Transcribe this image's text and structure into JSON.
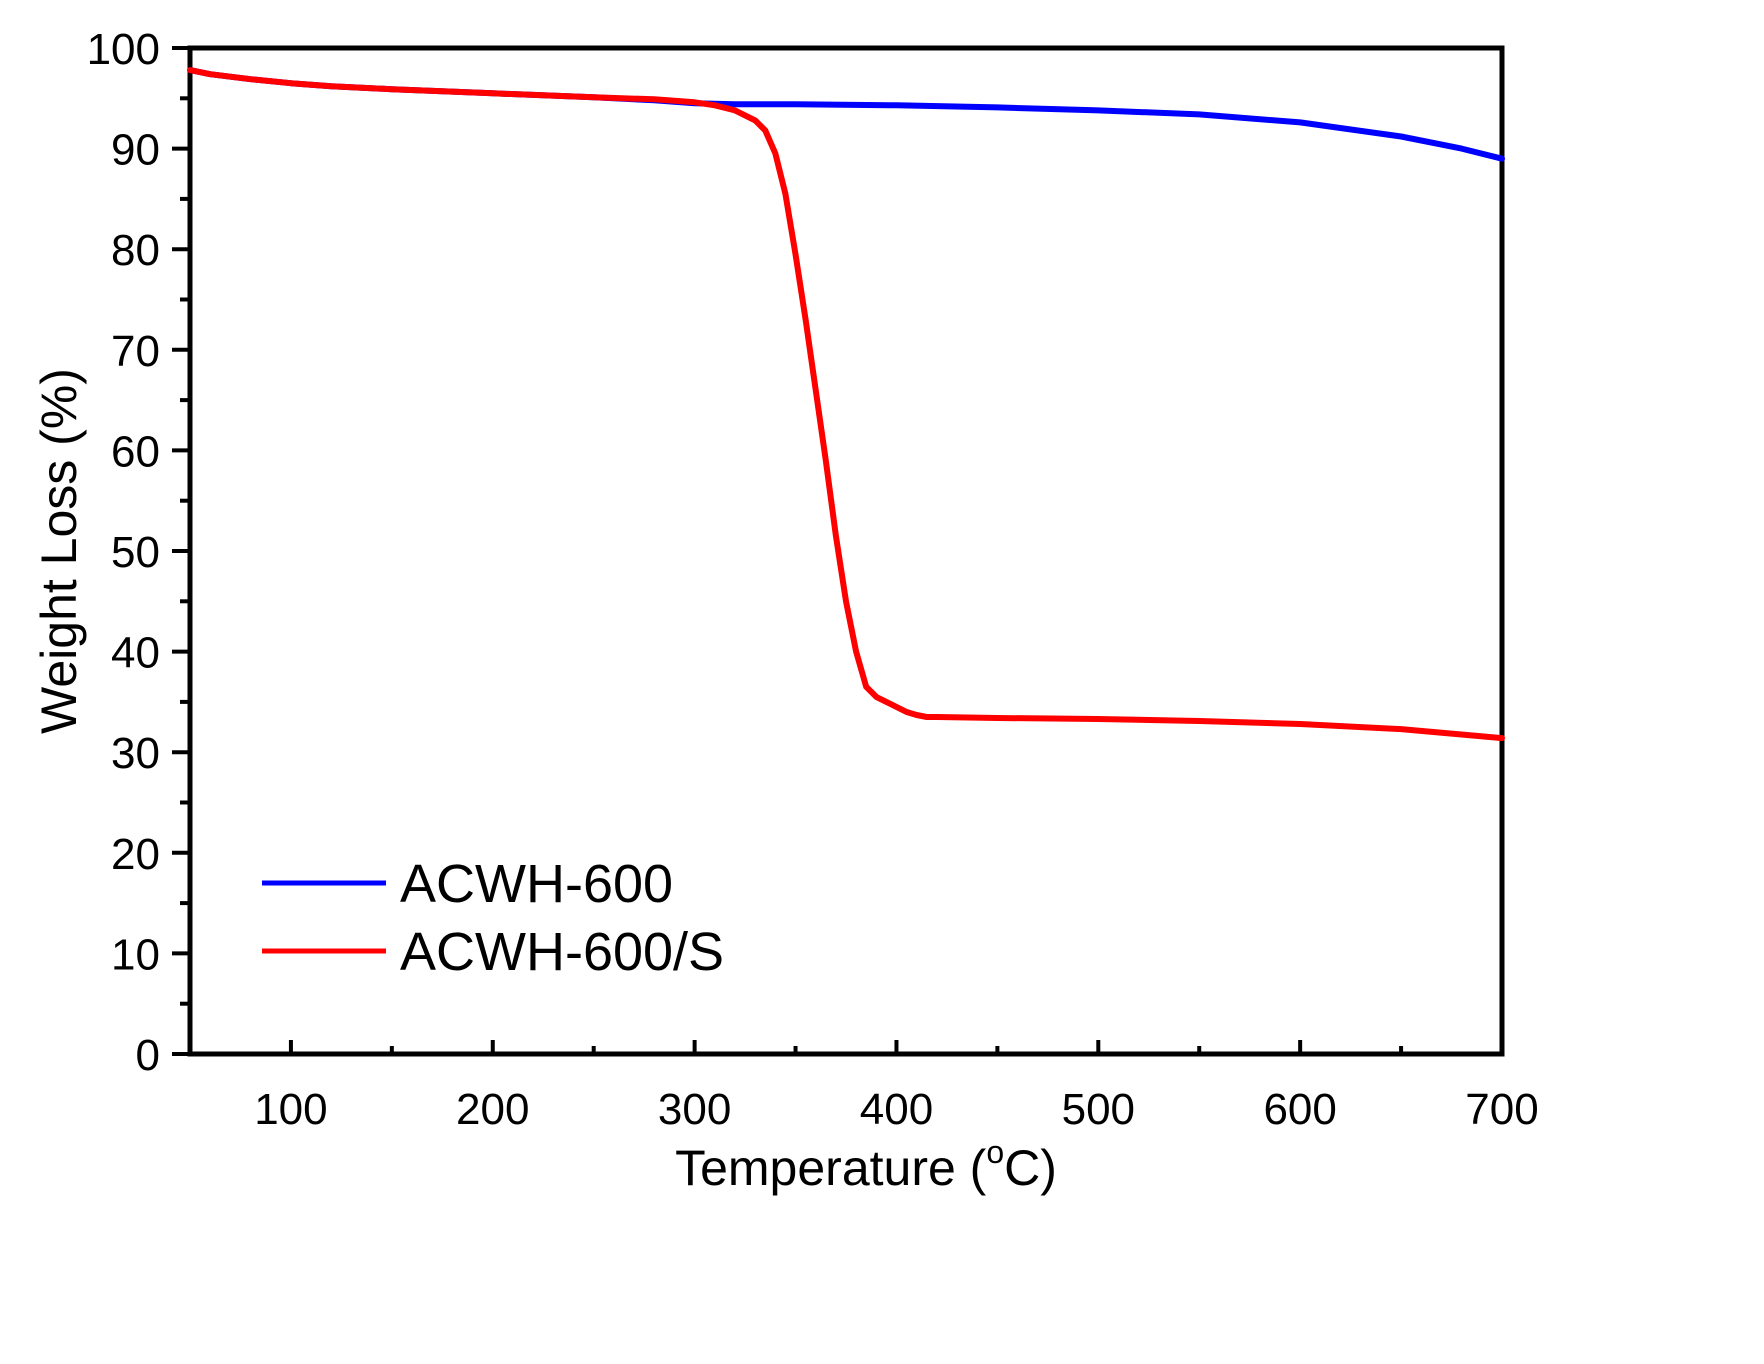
{
  "chart_data": {
    "type": "line",
    "title": "",
    "xlabel": "Temperature (",
    "xlabel_sup": "o",
    "xlabel_suffix": "C)",
    "ylabel": "Weight Loss (%)",
    "xlim": [
      50,
      700
    ],
    "ylim": [
      0,
      100
    ],
    "xticks": [
      100,
      200,
      300,
      400,
      500,
      600,
      700
    ],
    "yticks": [
      0,
      10,
      20,
      30,
      40,
      50,
      60,
      70,
      80,
      90,
      100
    ],
    "grid": false,
    "legend_position": "bottom-left",
    "series": [
      {
        "name": "ACWH-600",
        "color": "#0000ff",
        "x": [
          50,
          60,
          80,
          100,
          120,
          150,
          200,
          250,
          280,
          300,
          320,
          350,
          400,
          450,
          500,
          550,
          600,
          650,
          680,
          700
        ],
        "y": [
          97.8,
          97.4,
          96.9,
          96.5,
          96.2,
          95.9,
          95.5,
          95.1,
          94.8,
          94.5,
          94.4,
          94.4,
          94.3,
          94.1,
          93.8,
          93.4,
          92.6,
          91.2,
          90.0,
          89.0
        ]
      },
      {
        "name": "ACWH-600/S",
        "color": "#ff0000",
        "x": [
          50,
          60,
          80,
          100,
          120,
          150,
          200,
          250,
          280,
          300,
          310,
          320,
          330,
          335,
          340,
          345,
          350,
          355,
          360,
          365,
          370,
          375,
          380,
          385,
          390,
          395,
          400,
          405,
          410,
          415,
          420,
          450,
          500,
          550,
          600,
          650,
          700
        ],
        "y": [
          97.8,
          97.4,
          96.9,
          96.5,
          96.2,
          95.9,
          95.5,
          95.1,
          94.9,
          94.6,
          94.3,
          93.8,
          92.8,
          91.8,
          89.5,
          85.5,
          79.5,
          73.0,
          66.0,
          59.0,
          51.5,
          45.0,
          40.0,
          36.5,
          35.5,
          35.0,
          34.5,
          34.0,
          33.7,
          33.5,
          33.5,
          33.4,
          33.3,
          33.1,
          32.8,
          32.3,
          31.4
        ]
      }
    ]
  }
}
